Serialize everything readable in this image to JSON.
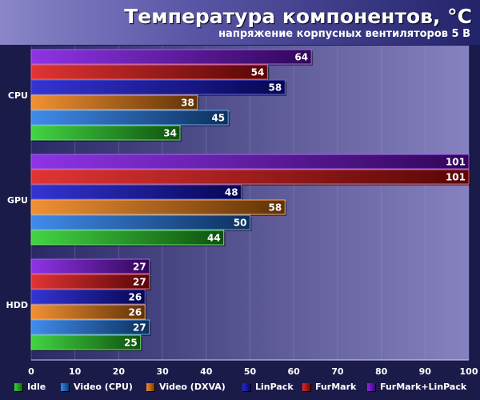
{
  "chart_data": {
    "type": "bar",
    "orientation": "horizontal",
    "title": "Температура компонентов, °C",
    "subtitle": "напряжение корпусных вентиляторов 5 В",
    "categories": [
      "CPU",
      "GPU",
      "HDD"
    ],
    "series": [
      {
        "name": "Idle",
        "color": "#22cc22",
        "values": [
          34,
          44,
          25
        ]
      },
      {
        "name": "Video (CPU)",
        "color": "#1e78e8",
        "values": [
          45,
          50,
          27
        ]
      },
      {
        "name": "Video (DXVA)",
        "color": "#ee7d10",
        "values": [
          38,
          58,
          26
        ]
      },
      {
        "name": "LinPack",
        "color": "#1010cc",
        "values": [
          58,
          48,
          26
        ]
      },
      {
        "name": "FurMark",
        "color": "#dd1010",
        "values": [
          54,
          101,
          27
        ]
      },
      {
        "name": "FurMark+LinPack",
        "color": "#7a10e0",
        "values": [
          64,
          101,
          27
        ]
      }
    ],
    "xlim": [
      0,
      100
    ],
    "xticks": [
      0,
      10,
      20,
      30,
      40,
      50,
      60,
      70,
      80,
      90,
      100
    ],
    "grid": true,
    "legend_position": "bottom"
  }
}
